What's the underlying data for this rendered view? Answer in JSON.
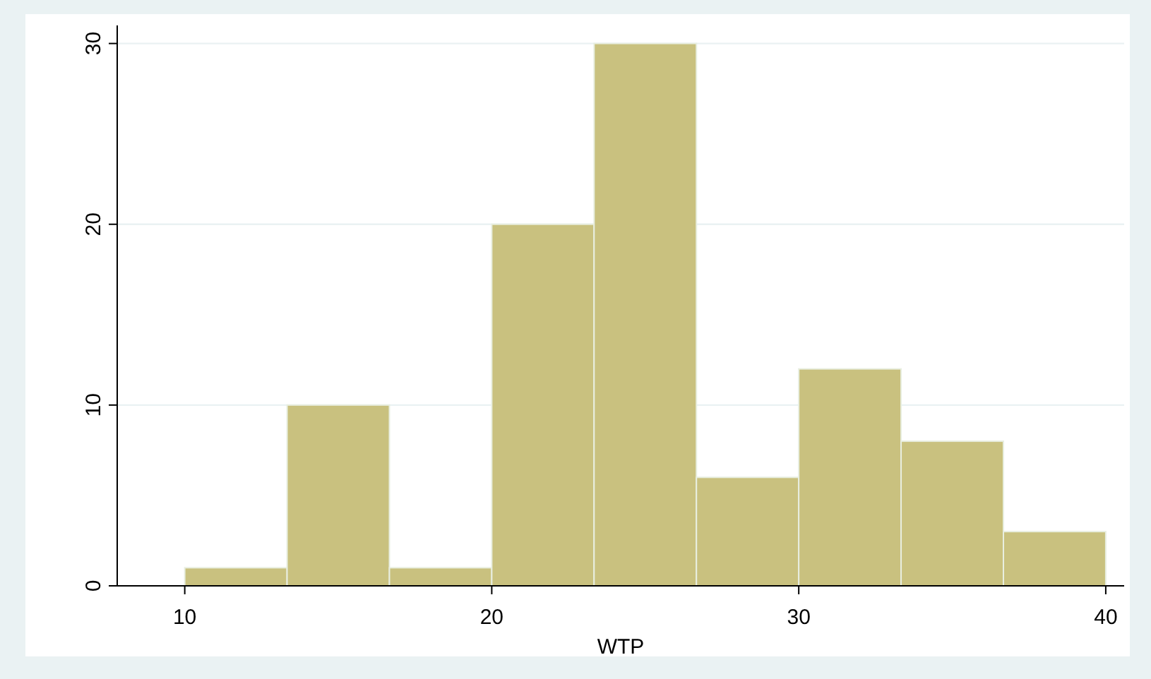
{
  "chart_data": {
    "type": "histogram",
    "xlabel": "WTP",
    "bins": [
      10,
      13.333,
      16.667,
      20,
      23.333,
      26.667,
      30,
      33.333,
      36.667,
      40
    ],
    "values": [
      1,
      10,
      1,
      20,
      30,
      6,
      12,
      8,
      3
    ],
    "color": "#c9c17f",
    "xlim": [
      7.8,
      40.6
    ],
    "ylim": [
      0,
      31
    ],
    "xticks": [
      10,
      20,
      30,
      40
    ],
    "yticks": [
      0,
      10,
      20,
      30
    ],
    "grid": "y"
  }
}
